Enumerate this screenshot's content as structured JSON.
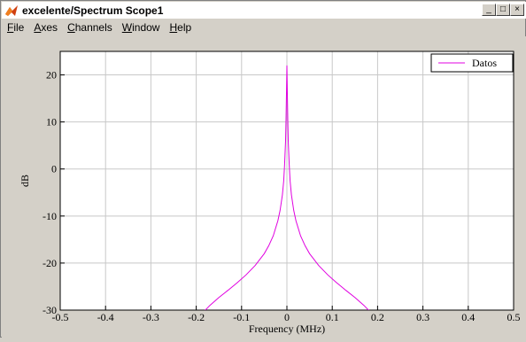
{
  "window": {
    "title": "excelente/Spectrum Scope1",
    "buttons": {
      "minimize": "_",
      "maximize": "□",
      "close": "×"
    }
  },
  "menu": [
    {
      "name": "file",
      "accel": "F",
      "rest": "ile"
    },
    {
      "name": "axes",
      "accel": "A",
      "rest": "xes"
    },
    {
      "name": "channels",
      "accel": "C",
      "rest": "hannels"
    },
    {
      "name": "window",
      "accel": "W",
      "rest": "indow"
    },
    {
      "name": "help",
      "accel": "H",
      "rest": "elp"
    }
  ],
  "chart_data": {
    "type": "line",
    "xlabel": "Frequency (MHz)",
    "ylabel": "dB",
    "xlim": [
      -0.5,
      0.5
    ],
    "ylim": [
      -30,
      25
    ],
    "xticks": [
      -0.5,
      -0.4,
      -0.3,
      -0.2,
      -0.1,
      0,
      0.1,
      0.2,
      0.3,
      0.4,
      0.5
    ],
    "xtick_labels": [
      "-0.5",
      "-0.4",
      "-0.3",
      "-0.2",
      "-0.1",
      "0",
      "0.1",
      "0.2",
      "0.3",
      "0.4",
      "0.5"
    ],
    "yticks": [
      -30,
      -20,
      -10,
      0,
      10,
      20
    ],
    "ytick_labels": [
      "-30",
      "-20",
      "-10",
      "0",
      "10",
      "20"
    ],
    "grid": true,
    "legend_position": "top-right",
    "background": "#ffffff",
    "series": [
      {
        "name": "Datos",
        "color": "#e000e0",
        "x": [
          -0.19,
          -0.17,
          -0.15,
          -0.13,
          -0.11,
          -0.09,
          -0.07,
          -0.05,
          -0.04,
          -0.03,
          -0.02,
          -0.015,
          -0.01,
          -0.007,
          -0.005,
          -0.003,
          -0.002,
          -0.001,
          0,
          0.001,
          0.002,
          0.003,
          0.005,
          0.007,
          0.01,
          0.015,
          0.02,
          0.03,
          0.04,
          0.05,
          0.07,
          0.09,
          0.11,
          0.13,
          0.15,
          0.17,
          0.19
        ],
        "y": [
          -31,
          -29,
          -27.3,
          -25.8,
          -24.2,
          -22.5,
          -20.5,
          -18,
          -16.3,
          -14.2,
          -11,
          -8.8,
          -5.5,
          -2.5,
          1,
          6,
          10.5,
          16,
          22,
          16,
          10.5,
          6,
          1,
          -2.5,
          -5.5,
          -8.8,
          -11,
          -14.2,
          -16.3,
          -18,
          -20.5,
          -22.5,
          -24.2,
          -25.8,
          -27.3,
          -29,
          -31
        ]
      }
    ]
  }
}
